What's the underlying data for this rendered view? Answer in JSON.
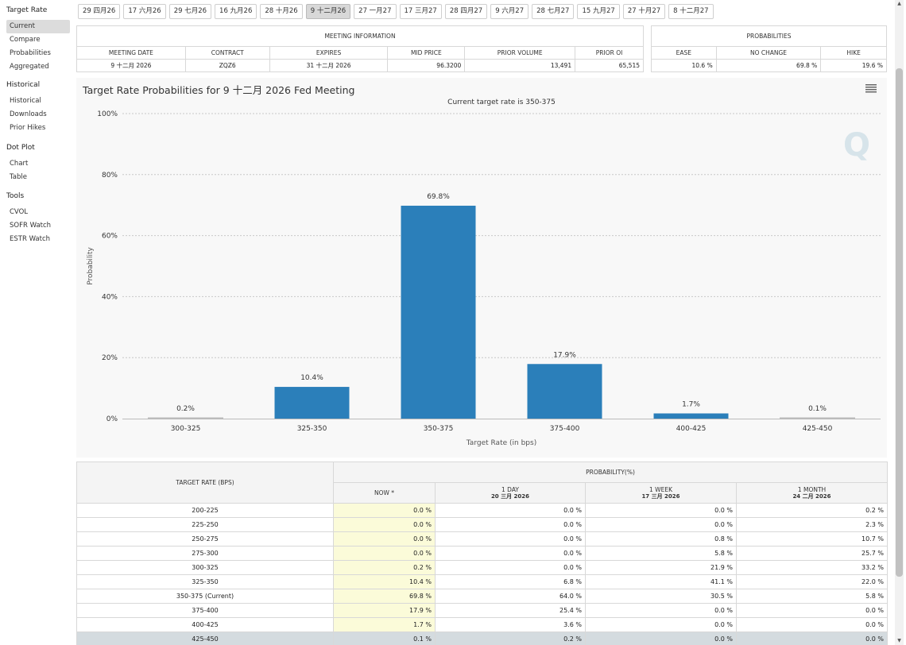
{
  "sidebar": {
    "groups": [
      {
        "title": "Target Rate",
        "items": [
          "Current",
          "Compare",
          "Probabilities",
          "Aggregated"
        ]
      },
      {
        "title": "Historical",
        "items": [
          "Historical",
          "Downloads",
          "Prior Hikes"
        ]
      },
      {
        "title": "Dot Plot",
        "items": [
          "Chart",
          "Table"
        ]
      },
      {
        "title": "Tools",
        "items": [
          "CVOL",
          "SOFR Watch",
          "ESTR Watch"
        ]
      }
    ],
    "active_item": "Current"
  },
  "date_tabs": [
    "29 四月26",
    "17 六月26",
    "29 七月26",
    "16 九月26",
    "28 十月26",
    "9 十二月26",
    "27 一月27",
    "17 三月27",
    "28 四月27",
    "9 六月27",
    "28 七月27",
    "15 九月27",
    "27 十月27",
    "8 十二月27"
  ],
  "active_date_tab": "9 十二月26",
  "meeting_info": {
    "caption": "MEETING INFORMATION",
    "headers": [
      "MEETING DATE",
      "CONTRACT",
      "EXPIRES",
      "MID PRICE",
      "PRIOR VOLUME",
      "PRIOR OI"
    ],
    "values": [
      "9 十二月 2026",
      "ZQZ6",
      "31 十二月 2026",
      "96.3200",
      "13,491",
      "65,515"
    ]
  },
  "probabilities": {
    "caption": "PROBABILITIES",
    "headers": [
      "EASE",
      "NO CHANGE",
      "HIKE"
    ],
    "values": [
      "10.6 %",
      "69.8 %",
      "19.6 %"
    ]
  },
  "chart": {
    "title": "Target Rate Probabilities for 9 十二月 2026 Fed Meeting",
    "subtitle": "Current target rate is 350-375",
    "menu_icon": "hamburger-menu-icon",
    "watermark_icon": "q-logo-icon",
    "bar_color": "#2b7fba"
  },
  "chart_data": {
    "type": "bar",
    "title": "Target Rate Probabilities for 9 十二月 2026 Fed Meeting",
    "subtitle": "Current target rate is 350-375",
    "categories": [
      "300-325",
      "325-350",
      "350-375",
      "375-400",
      "400-425",
      "425-450"
    ],
    "values": [
      0.2,
      10.4,
      69.8,
      17.9,
      1.7,
      0.1
    ],
    "data_labels": [
      "0.2%",
      "10.4%",
      "69.8%",
      "17.9%",
      "1.7%",
      "0.1%"
    ],
    "xlabel": "Target Rate (in bps)",
    "ylabel": "Probability",
    "ylim": [
      0,
      100
    ],
    "yticks": [
      "0%",
      "20%",
      "40%",
      "60%",
      "80%",
      "100%"
    ],
    "grid": true
  },
  "prob_table": {
    "header_rate": "TARGET RATE (BPS)",
    "header_prob": "PROBABILITY(%)",
    "columns": [
      {
        "label": "NOW *",
        "sub": ""
      },
      {
        "label": "1 DAY",
        "sub": "20 三月 2026"
      },
      {
        "label": "1 WEEK",
        "sub": "17 三月 2026"
      },
      {
        "label": "1 MONTH",
        "sub": "24 二月 2026"
      }
    ],
    "rows": [
      {
        "rate": "200-225",
        "values": [
          "0.0 %",
          "0.0 %",
          "0.0 %",
          "0.2 %"
        ]
      },
      {
        "rate": "225-250",
        "values": [
          "0.0 %",
          "0.0 %",
          "0.0 %",
          "2.3 %"
        ]
      },
      {
        "rate": "250-275",
        "values": [
          "0.0 %",
          "0.0 %",
          "0.8 %",
          "10.7 %"
        ]
      },
      {
        "rate": "275-300",
        "values": [
          "0.0 %",
          "0.0 %",
          "5.8 %",
          "25.7 %"
        ]
      },
      {
        "rate": "300-325",
        "values": [
          "0.2 %",
          "0.0 %",
          "21.9 %",
          "33.2 %"
        ]
      },
      {
        "rate": "325-350",
        "values": [
          "10.4 %",
          "6.8 %",
          "41.1 %",
          "22.0 %"
        ]
      },
      {
        "rate": "350-375 (Current)",
        "values": [
          "69.8 %",
          "64.0 %",
          "30.5 %",
          "5.8 %"
        ]
      },
      {
        "rate": "375-400",
        "values": [
          "17.9 %",
          "25.4 %",
          "0.0 %",
          "0.0 %"
        ]
      },
      {
        "rate": "400-425",
        "values": [
          "1.7 %",
          "3.6 %",
          "0.0 %",
          "0.0 %"
        ]
      },
      {
        "rate": "425-450",
        "values": [
          "0.1 %",
          "0.2 %",
          "0.0 %",
          "0.0 %"
        ]
      }
    ],
    "highlight_row": "425-450"
  }
}
